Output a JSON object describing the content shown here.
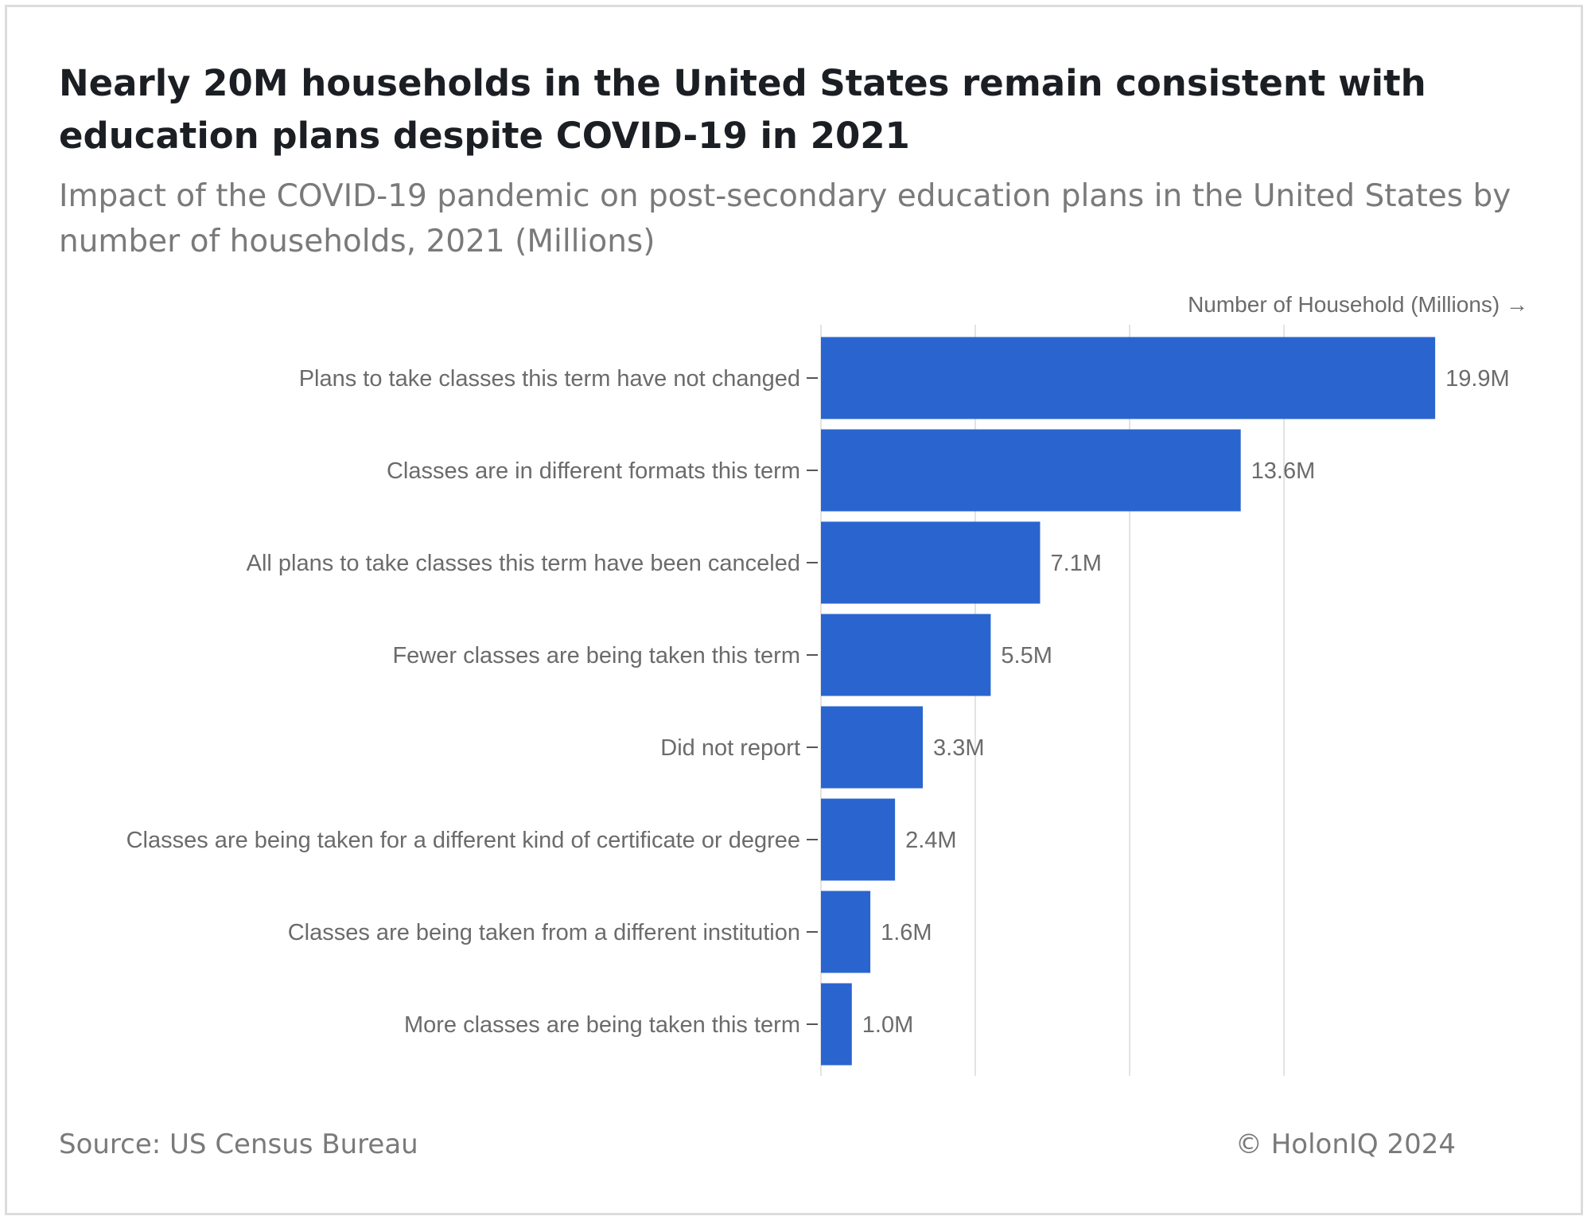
{
  "header": {
    "title": "Nearly 20M households in the United States remain consistent with education plans despite COVID-19 in 2021",
    "subtitle": "Impact of the COVID-19 pandemic on post-secondary education plans in the United States by number of households, 2021 (Millions)"
  },
  "footer": {
    "source": "Source: US Census Bureau",
    "copyright": "© HolonIQ 2024"
  },
  "colors": {
    "bar": "#2a65cf",
    "grid": "#e3e3e3",
    "text": "#6b6b6b"
  },
  "chart_data": {
    "type": "bar",
    "orientation": "horizontal",
    "xlabel": "Number of Household (Millions) →",
    "ylabel": "",
    "xlim": [
      0,
      23
    ],
    "grid": true,
    "categories": [
      "Plans to take classes this term have not changed",
      "Classes are in different formats this term",
      "All plans to take classes this term have been canceled",
      "Fewer classes are being taken this term",
      "Did not report",
      "Classes are being taken for a different kind of certificate or degree",
      "Classes are being taken from a different institution",
      "More classes are being taken this term"
    ],
    "values": [
      19.9,
      13.6,
      7.1,
      5.5,
      3.3,
      2.4,
      1.6,
      1.0
    ],
    "data_labels": [
      "19.9M",
      "13.6M",
      "7.1M",
      "5.5M",
      "3.3M",
      "2.4M",
      "1.6M",
      "1.0M"
    ]
  }
}
